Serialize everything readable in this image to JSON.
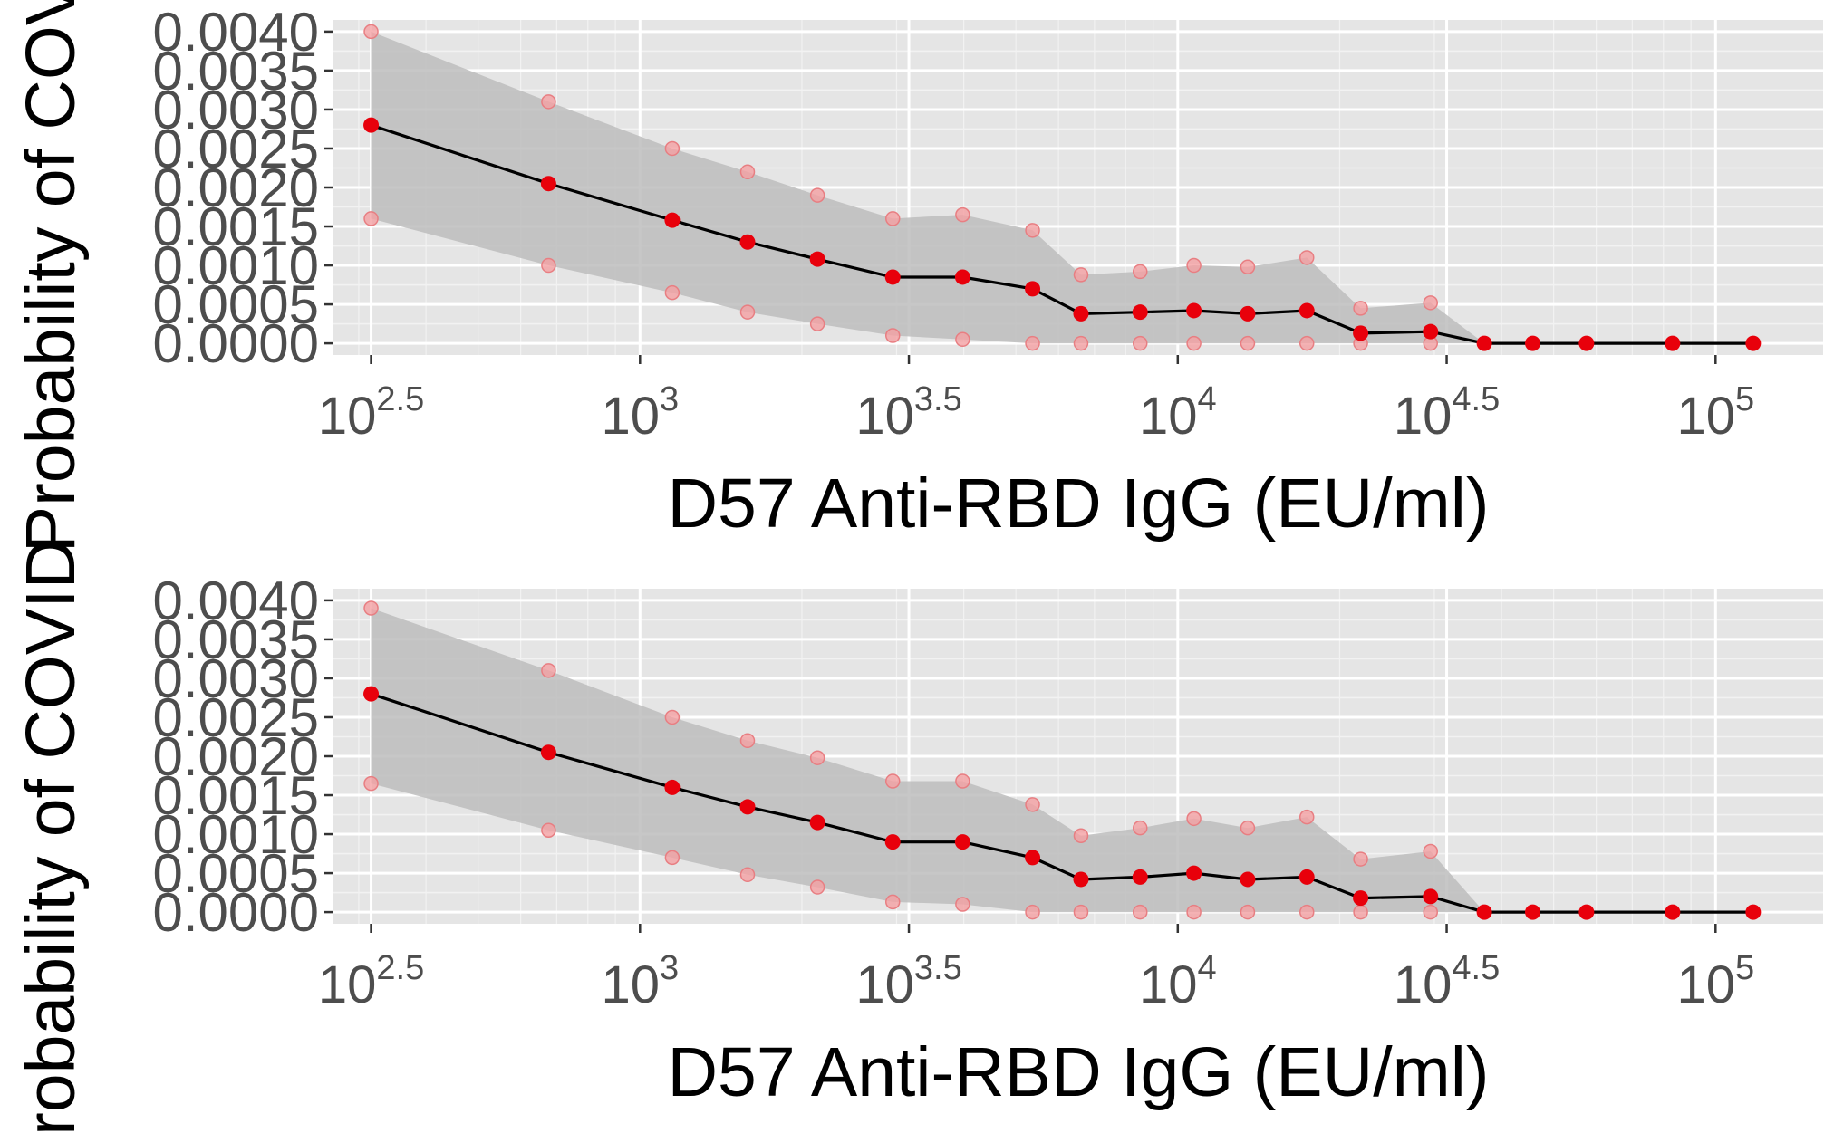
{
  "colors": {
    "panel_background": "#e5e5e5",
    "grid_major": "#ffffff",
    "grid_minor": "#f2f2f2",
    "ribbon_fill": "#bdbdbd",
    "line": "#000000",
    "point": "#e8000b",
    "bound_point": "#f4a0a3",
    "tick_text": "#4d4d4d"
  },
  "shared_ylabel": "Probability of COVID",
  "chart_data": [
    {
      "type": "line",
      "xlabel": "D57 Anti-RBD IgG (EU/ml)",
      "ylabel": "Probability of COVID",
      "x_scale": "log10",
      "xlim": [
        2.43,
        5.2
      ],
      "ylim": [
        -0.00015,
        0.00415
      ],
      "x_ticks": [
        {
          "base": "10",
          "exp": "2.5",
          "value": 2.5
        },
        {
          "base": "10",
          "exp": "3",
          "value": 3.0
        },
        {
          "base": "10",
          "exp": "3.5",
          "value": 3.5
        },
        {
          "base": "10",
          "exp": "4",
          "value": 4.0
        },
        {
          "base": "10",
          "exp": "4.5",
          "value": 4.5
        },
        {
          "base": "10",
          "exp": "5",
          "value": 5.0
        }
      ],
      "y_ticks": [
        "0.0000",
        "0.0005",
        "0.0010",
        "0.0015",
        "0.0020",
        "0.0025",
        "0.0030",
        "0.0035",
        "0.0040"
      ],
      "grid": true,
      "x_log10": [
        2.5,
        2.83,
        3.06,
        3.2,
        3.33,
        3.47,
        3.6,
        3.73,
        3.82,
        3.93,
        4.03,
        4.13,
        4.24,
        4.34,
        4.47,
        4.57,
        4.66,
        4.76,
        4.92,
        5.07
      ],
      "series": [
        {
          "role": "estimate",
          "values": [
            0.0028,
            0.00205,
            0.00158,
            0.0013,
            0.00108,
            0.00085,
            0.00085,
            0.0007,
            0.00038,
            0.0004,
            0.00042,
            0.00038,
            0.00042,
            0.00013,
            0.00015,
            0.0,
            0.0,
            0.0,
            0.0,
            0.0
          ]
        },
        {
          "role": "upper",
          "values": [
            0.004,
            0.0031,
            0.0025,
            0.0022,
            0.0019,
            0.0016,
            0.00165,
            0.00145,
            0.00088,
            0.00092,
            0.001,
            0.00098,
            0.0011,
            0.00045,
            0.00052,
            0.0,
            0.0,
            0.0,
            0.0,
            0.0
          ]
        },
        {
          "role": "lower",
          "values": [
            0.0016,
            0.001,
            0.00065,
            0.0004,
            0.00025,
            0.0001,
            5e-05,
            0.0,
            0.0,
            0.0,
            0.0,
            0.0,
            0.0,
            0.0,
            0.0,
            0.0,
            0.0,
            0.0,
            0.0,
            0.0
          ]
        }
      ]
    },
    {
      "type": "line",
      "xlabel": "D57 Anti-RBD IgG (EU/ml)",
      "ylabel": "Probability of COVID",
      "x_scale": "log10",
      "xlim": [
        2.43,
        5.2
      ],
      "ylim": [
        -0.00015,
        0.00415
      ],
      "x_ticks": [
        {
          "base": "10",
          "exp": "2.5",
          "value": 2.5
        },
        {
          "base": "10",
          "exp": "3",
          "value": 3.0
        },
        {
          "base": "10",
          "exp": "3.5",
          "value": 3.5
        },
        {
          "base": "10",
          "exp": "4",
          "value": 4.0
        },
        {
          "base": "10",
          "exp": "4.5",
          "value": 4.5
        },
        {
          "base": "10",
          "exp": "5",
          "value": 5.0
        }
      ],
      "y_ticks": [
        "0.0000",
        "0.0005",
        "0.0010",
        "0.0015",
        "0.0020",
        "0.0025",
        "0.0030",
        "0.0035",
        "0.0040"
      ],
      "grid": true,
      "x_log10": [
        2.5,
        2.83,
        3.06,
        3.2,
        3.33,
        3.47,
        3.6,
        3.73,
        3.82,
        3.93,
        4.03,
        4.13,
        4.24,
        4.34,
        4.47,
        4.57,
        4.66,
        4.76,
        4.92,
        5.07
      ],
      "series": [
        {
          "role": "estimate",
          "values": [
            0.0028,
            0.00205,
            0.0016,
            0.00135,
            0.00115,
            0.0009,
            0.0009,
            0.0007,
            0.00042,
            0.00045,
            0.0005,
            0.00042,
            0.00045,
            0.00018,
            0.0002,
            0.0,
            0.0,
            0.0,
            0.0,
            0.0
          ]
        },
        {
          "role": "upper",
          "values": [
            0.0039,
            0.0031,
            0.0025,
            0.0022,
            0.00198,
            0.00168,
            0.00168,
            0.00138,
            0.00098,
            0.00108,
            0.0012,
            0.00108,
            0.00122,
            0.00068,
            0.00078,
            0.0,
            0.0,
            0.0,
            0.0,
            0.0
          ]
        },
        {
          "role": "lower",
          "values": [
            0.00165,
            0.00105,
            0.0007,
            0.00048,
            0.00032,
            0.00013,
            0.0001,
            0.0,
            0.0,
            0.0,
            0.0,
            0.0,
            0.0,
            0.0,
            0.0,
            0.0,
            0.0,
            0.0,
            0.0,
            0.0
          ]
        }
      ]
    }
  ]
}
